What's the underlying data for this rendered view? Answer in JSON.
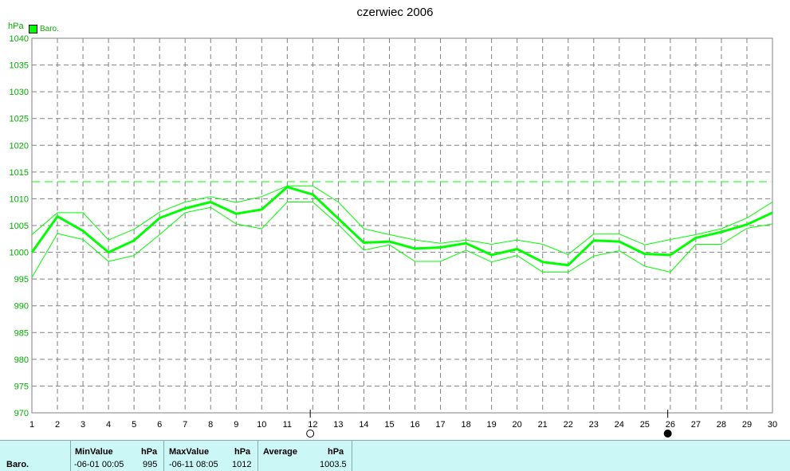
{
  "chart_data": {
    "type": "line",
    "title": "czerwiec 2006",
    "ylabel": "hPa",
    "ylim": [
      970,
      1040
    ],
    "xlim": [
      1,
      30
    ],
    "yticks": [
      970,
      975,
      980,
      985,
      990,
      995,
      1000,
      1005,
      1010,
      1015,
      1020,
      1025,
      1030,
      1035,
      1040
    ],
    "xticks": [
      "1",
      "2",
      "3",
      "4",
      "5",
      "6",
      "7",
      "8",
      "9",
      "10",
      "11",
      "12",
      "13",
      "14",
      "15",
      "16",
      "17",
      "18",
      "19",
      "20",
      "21",
      "22",
      "23",
      "24",
      "25",
      "26",
      "27",
      "28",
      "29",
      "30"
    ],
    "grid": true,
    "legend": [
      "Baro."
    ],
    "reference_line": 1013.2,
    "moon_phases": [
      {
        "day": 11.9,
        "phase": "full-moon"
      },
      {
        "day": 25.9,
        "phase": "new-moon"
      }
    ],
    "series": [
      {
        "name": "Baro.",
        "role": "mean",
        "x": [
          1,
          2,
          3,
          4,
          5,
          6,
          7,
          8,
          9,
          10,
          11,
          12,
          13,
          14,
          15,
          16,
          17,
          18,
          19,
          20,
          21,
          22,
          23,
          24,
          25,
          26,
          27,
          28,
          29,
          30
        ],
        "values": [
          1000,
          1006.7,
          1004,
          1000,
          1002.2,
          1006.4,
          1008.2,
          1009.4,
          1007.2,
          1008,
          1012.2,
          1010.8,
          1006.3,
          1001.8,
          1002,
          1000.7,
          1000.9,
          1001.7,
          999.5,
          1000.6,
          998.2,
          997.6,
          1002.2,
          1002,
          999.7,
          999.5,
          1002.7,
          1003.8,
          1005.2,
          1007.4
        ]
      },
      {
        "name": "",
        "role": "max",
        "x": [
          1,
          2,
          3,
          4,
          5,
          6,
          7,
          8,
          9,
          10,
          11,
          12,
          13,
          14,
          15,
          16,
          17,
          18,
          19,
          20,
          21,
          22,
          23,
          24,
          25,
          26,
          27,
          28,
          29,
          30
        ],
        "values": [
          1003.3,
          1007.4,
          1007.4,
          1002.3,
          1004.3,
          1007.5,
          1009.4,
          1010.4,
          1009.3,
          1010.4,
          1012.4,
          1012.4,
          1009.4,
          1004.4,
          1003.3,
          1002.3,
          1001.7,
          1002.3,
          1001.5,
          1002.3,
          1001.5,
          999.6,
          1003.4,
          1003.4,
          1001.4,
          1002.4,
          1003.3,
          1004.4,
          1006.4,
          1009.4
        ]
      },
      {
        "name": "",
        "role": "min",
        "x": [
          1,
          2,
          3,
          4,
          5,
          6,
          7,
          8,
          9,
          10,
          11,
          12,
          13,
          14,
          15,
          16,
          17,
          18,
          19,
          20,
          21,
          22,
          23,
          24,
          25,
          26,
          27,
          28,
          29,
          30
        ],
        "values": [
          995.3,
          1003.5,
          1002.4,
          998.3,
          999.4,
          1003.3,
          1007.4,
          1008.4,
          1005.3,
          1004.4,
          1009.4,
          1009.4,
          1005.2,
          1000.4,
          1001.4,
          998.3,
          998.3,
          1000.4,
          998.2,
          999.4,
          996.3,
          996.3,
          999.3,
          1000.3,
          997.4,
          996.3,
          1001.5,
          1001.5,
          1004.5,
          1005.3
        ]
      }
    ]
  },
  "colors": {
    "series": "#00ff00",
    "axis_text": "#000000",
    "unit_text": "#00b000",
    "grid": "#808080",
    "stats_bg": "#ccf7f7"
  },
  "stats": {
    "row_label": "Baro.",
    "min_header": "MinValue",
    "min_unit": "hPa",
    "min_time": "-06-01  00:05",
    "min_value": "995",
    "max_header": "MaxValue",
    "max_unit": "hPa",
    "max_time": "-06-11  08:05",
    "max_value": "1012",
    "avg_header": "Average",
    "avg_unit": "hPa",
    "avg_value": "1003.5"
  }
}
